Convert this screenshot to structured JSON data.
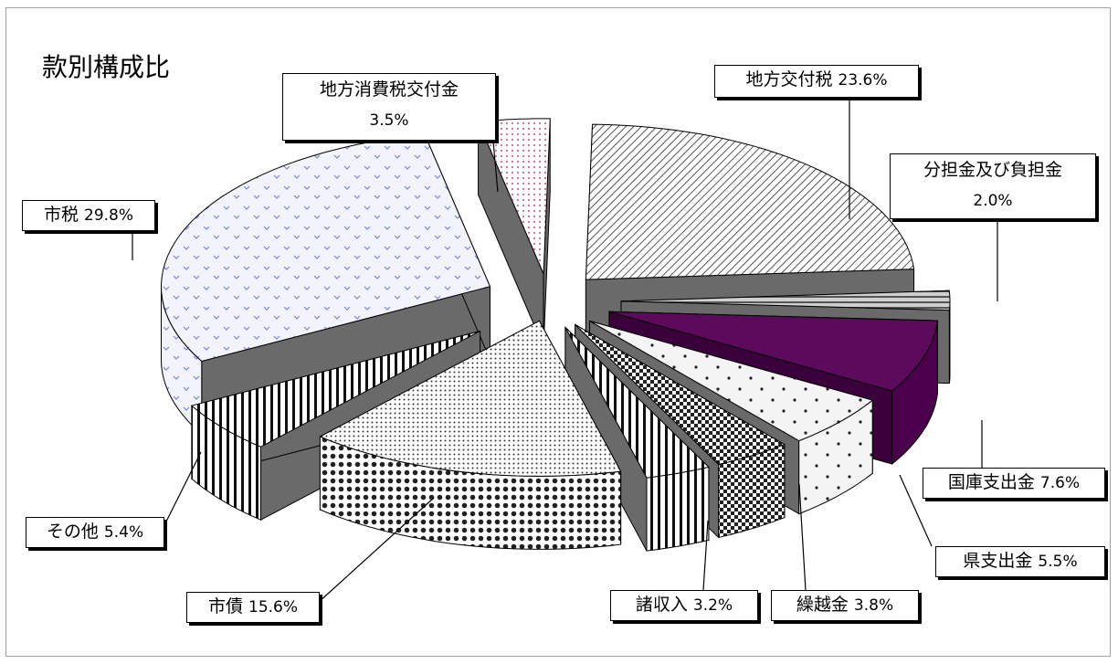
{
  "title": "款別構成比",
  "chart_data": {
    "type": "pie",
    "style": "exploded-3d",
    "slices": [
      {
        "name": "地方交付税",
        "value": 23.6,
        "label": "23.6%",
        "color": "#d9d9d9"
      },
      {
        "name": "分担金及び負担金",
        "value": 2.0,
        "label": "2.0%",
        "color": "#bfbfbf"
      },
      {
        "name": "国庫支出金",
        "value": 7.6,
        "label": "7.6%",
        "color": "#5c0a5c"
      },
      {
        "name": "県支出金",
        "value": 5.5,
        "label": "5.5%",
        "color": "#f0f0f0"
      },
      {
        "name": "繰越金",
        "value": 3.8,
        "label": "3.8%",
        "color": "#606060"
      },
      {
        "name": "諸収入",
        "value": 3.2,
        "label": "3.2%",
        "color": "#1a1a1a"
      },
      {
        "name": "市債",
        "value": 15.6,
        "label": "15.6%",
        "color": "#bdbdbd"
      },
      {
        "name": "その他",
        "value": 5.4,
        "label": "5.4%",
        "color": "#ffffff"
      },
      {
        "name": "市税",
        "value": 29.8,
        "label": "29.8%",
        "color": "#eef0fb"
      },
      {
        "name": "地方消費税交付金",
        "value": 3.5,
        "label": "3.5%",
        "color": "#f2dce6"
      }
    ]
  }
}
